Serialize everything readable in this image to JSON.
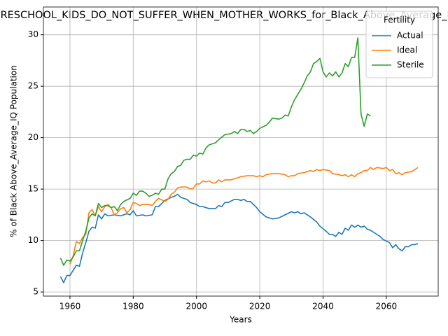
{
  "chart_data": {
    "type": "line",
    "title": "Fertility_by_PRESCHOOL_KIDS_DO_NOT_SUFFER_WHEN_MOTHER_WORKS_for_Black_Above_Average_IQ Population",
    "x_label": "Years",
    "y_label": "% of Black Above_Average_IQ Population",
    "legend_title": "Fertility",
    "legend": "upper right",
    "grid": true,
    "xlim": [
      1951.6,
      2076.4
    ],
    "ylim": [
      4.6,
      32.7
    ],
    "xticks": [
      1960,
      1980,
      2000,
      2020,
      2040,
      2060
    ],
    "yticks": [
      5,
      10,
      15,
      20,
      25,
      30
    ],
    "series": [
      {
        "name": "Actual",
        "color": "#1f77b4",
        "x": [
          1957,
          1958,
          1959,
          1960,
          1962,
          1963,
          1964,
          1965,
          1966,
          1967,
          1968,
          1969,
          1970,
          1971,
          1972,
          1974,
          1976,
          1978,
          1979,
          1980,
          1981,
          1983,
          1984,
          1986,
          1987,
          1988,
          1990,
          1992,
          1993,
          1994,
          1995,
          1997,
          1998,
          2000,
          2001,
          2002,
          2004,
          2006,
          2007,
          2008,
          2009,
          2010,
          2012,
          2013,
          2014,
          2015,
          2016,
          2017,
          2019,
          2020,
          2022,
          2024,
          2026,
          2028,
          2030,
          2031,
          2032,
          2033,
          2034,
          2036,
          2038,
          2039,
          2041,
          2042,
          2043,
          2044,
          2045,
          2046,
          2047,
          2048,
          2049,
          2050,
          2051,
          2052,
          2053,
          2054,
          2055,
          2056,
          2058,
          2059,
          2061,
          2062,
          2063,
          2064,
          2065,
          2066,
          2067,
          2068,
          2069,
          2070
        ],
        "values": [
          6.5,
          5.9,
          6.6,
          6.6,
          7.6,
          7.5,
          8.8,
          9.8,
          10.9,
          11.3,
          11.2,
          12.5,
          12.1,
          12.6,
          12.4,
          12.5,
          12.4,
          12.6,
          12.5,
          12.9,
          12.4,
          12.5,
          12.4,
          12.5,
          13.3,
          13.3,
          13.9,
          14.2,
          14.3,
          14.5,
          14.2,
          14.0,
          13.7,
          13.5,
          13.3,
          13.3,
          13.1,
          13.1,
          13.4,
          13.3,
          13.7,
          13.7,
          14.0,
          14.0,
          13.9,
          14.0,
          13.8,
          13.8,
          13.2,
          12.8,
          12.3,
          12.1,
          12.2,
          12.5,
          12.8,
          12.7,
          12.8,
          12.6,
          12.7,
          12.3,
          11.8,
          11.4,
          10.9,
          10.6,
          10.6,
          10.4,
          10.8,
          10.6,
          11.2,
          11.0,
          11.5,
          11.3,
          11.5,
          11.3,
          11.4,
          11.1,
          11.0,
          10.8,
          10.4,
          10.1,
          9.8,
          9.3,
          9.6,
          9.2,
          9.0,
          9.4,
          9.4,
          9.6,
          9.6,
          9.7
        ]
      },
      {
        "name": "Ideal",
        "color": "#ff7f0e",
        "x": [
          1960,
          1961,
          1962,
          1963,
          1964,
          1965,
          1966,
          1967,
          1968,
          1969,
          1970,
          1971,
          1972,
          1973,
          1974,
          1975,
          1976,
          1977,
          1978,
          1979,
          1980,
          1981,
          1982,
          1983,
          1985,
          1986,
          1987,
          1988,
          1990,
          1991,
          1992,
          1993,
          1994,
          1995,
          1997,
          1998,
          1999,
          2000,
          2001,
          2002,
          2003,
          2004,
          2005,
          2006,
          2007,
          2008,
          2009,
          2011,
          2012,
          2014,
          2016,
          2018,
          2019,
          2020,
          2021,
          2022,
          2024,
          2026,
          2028,
          2029,
          2030,
          2031,
          2032,
          2034,
          2036,
          2037,
          2038,
          2039,
          2040,
          2042,
          2043,
          2045,
          2046,
          2047,
          2048,
          2049,
          2050,
          2051,
          2052,
          2053,
          2054,
          2055,
          2056,
          2057,
          2059,
          2060,
          2061,
          2062,
          2063,
          2064,
          2065,
          2066,
          2068,
          2070
        ],
        "values": [
          7.7,
          8.5,
          9.9,
          9.7,
          10.3,
          10.6,
          12.7,
          13.0,
          12.4,
          13.3,
          12.8,
          13.3,
          13.5,
          13.2,
          12.5,
          12.7,
          13.1,
          13.2,
          12.7,
          13.0,
          13.7,
          13.6,
          13.4,
          13.5,
          13.5,
          13.4,
          13.8,
          14.1,
          13.8,
          14.0,
          14.5,
          14.7,
          15.1,
          15.2,
          15.2,
          15.0,
          15.1,
          15.5,
          15.5,
          15.8,
          15.7,
          15.8,
          15.6,
          15.6,
          15.9,
          15.7,
          15.9,
          15.9,
          16.0,
          16.2,
          16.3,
          16.3,
          16.2,
          16.3,
          16.2,
          16.4,
          16.5,
          16.5,
          16.4,
          16.2,
          16.3,
          16.3,
          16.5,
          16.6,
          16.8,
          16.7,
          16.9,
          16.8,
          16.9,
          16.8,
          16.5,
          16.4,
          16.3,
          16.4,
          16.2,
          16.4,
          16.2,
          16.5,
          16.6,
          16.8,
          16.8,
          17.1,
          16.9,
          17.1,
          17.0,
          17.1,
          16.8,
          16.9,
          16.5,
          16.6,
          16.4,
          16.6,
          16.7,
          17.1
        ]
      },
      {
        "name": "Sterile",
        "color": "#2ca02c",
        "x": [
          1957,
          1958,
          1959,
          1960,
          1961,
          1962,
          1963,
          1964,
          1965,
          1966,
          1967,
          1968,
          1969,
          1970,
          1971,
          1972,
          1973,
          1974,
          1975,
          1976,
          1977,
          1979,
          1980,
          1981,
          1982,
          1983,
          1984,
          1985,
          1986,
          1987,
          1988,
          1989,
          1990,
          1991,
          1992,
          1993,
          1994,
          1995,
          1996,
          1997,
          1998,
          1999,
          2000,
          2001,
          2002,
          2003,
          2004,
          2006,
          2007,
          2009,
          2011,
          2012,
          2013,
          2014,
          2015,
          2016,
          2017,
          2018,
          2019,
          2020,
          2022,
          2023,
          2024,
          2026,
          2027,
          2028,
          2029,
          2030,
          2031,
          2032,
          2033,
          2034,
          2035,
          2036,
          2037,
          2038,
          2039,
          2040,
          2041,
          2042,
          2043,
          2044,
          2045,
          2046,
          2047,
          2048,
          2049,
          2050,
          2051,
          2052,
          2053,
          2054,
          2055
        ],
        "values": [
          8.3,
          7.6,
          8.1,
          8.0,
          8.4,
          9.0,
          9.0,
          10.0,
          10.9,
          12.2,
          12.6,
          12.4,
          13.6,
          13.2,
          13.4,
          13.4,
          13.2,
          13.3,
          12.9,
          13.5,
          13.8,
          14.1,
          14.6,
          14.4,
          14.8,
          14.8,
          14.6,
          14.3,
          14.4,
          14.6,
          14.5,
          15.0,
          15.0,
          16.0,
          16.5,
          16.7,
          17.2,
          17.3,
          17.8,
          17.9,
          17.9,
          18.3,
          18.2,
          18.5,
          18.4,
          19.0,
          19.3,
          19.5,
          19.8,
          20.3,
          20.4,
          20.6,
          20.4,
          20.8,
          20.8,
          20.6,
          20.7,
          20.4,
          20.6,
          20.9,
          21.2,
          21.5,
          21.9,
          21.8,
          21.9,
          22.2,
          22.1,
          23.0,
          23.7,
          24.2,
          24.7,
          25.3,
          26.0,
          26.4,
          27.2,
          27.4,
          27.7,
          26.4,
          25.9,
          26.3,
          26.0,
          26.4,
          25.9,
          26.3,
          27.2,
          26.9,
          27.8,
          27.8,
          29.7,
          22.3,
          21.1,
          22.3,
          22.1
        ]
      }
    ]
  }
}
